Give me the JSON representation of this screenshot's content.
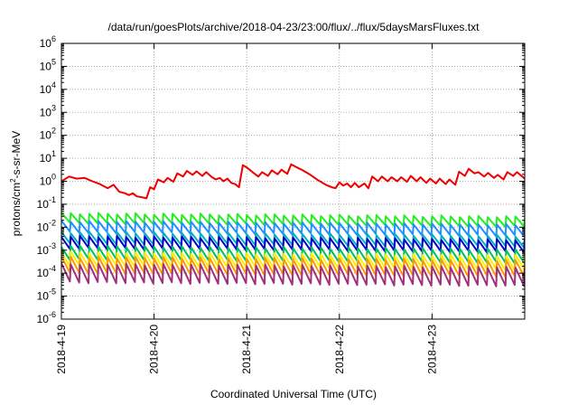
{
  "chart_data": {
    "type": "line",
    "title": "/data/run/goesPlots/archive/2018-04-23/23:00/flux/../flux/5daysMarsFluxes.txt",
    "xlabel": "Coordinated Universal Time (UTC)",
    "ylabel": "protons/cm²-s-sr-MeV",
    "y_scale": "log",
    "ylim": [
      1e-06,
      1000000.0
    ],
    "y_ticks": [
      {
        "value": 1e-06,
        "base": "10",
        "exp": "-6"
      },
      {
        "value": 1e-05,
        "base": "10",
        "exp": "-5"
      },
      {
        "value": 0.0001,
        "base": "10",
        "exp": "-4"
      },
      {
        "value": 0.001,
        "base": "10",
        "exp": "-3"
      },
      {
        "value": 0.01,
        "base": "10",
        "exp": "-2"
      },
      {
        "value": 0.1,
        "base": "10",
        "exp": "-1"
      },
      {
        "value": 1,
        "base": "10",
        "exp": "0"
      },
      {
        "value": 10,
        "base": "10",
        "exp": "1"
      },
      {
        "value": 100,
        "base": "10",
        "exp": "2"
      },
      {
        "value": 1000.0,
        "base": "10",
        "exp": "3"
      },
      {
        "value": 10000.0,
        "base": "10",
        "exp": "4"
      },
      {
        "value": 100000.0,
        "base": "10",
        "exp": "5"
      },
      {
        "value": 1000000.0,
        "base": "10",
        "exp": "6"
      }
    ],
    "xlim": [
      "2018-04-19",
      "2018-04-24"
    ],
    "x_ticks": [
      "2018-4-19",
      "2018-4-20",
      "2018-4-21",
      "2018-4-22",
      "2018-4-23"
    ],
    "grid": true,
    "legend": "none",
    "series": [
      {
        "color": "#ee0000",
        "points": [
          [
            "2018-04-19 00:00",
            1.0
          ],
          [
            "2018-04-19 02:00",
            1.6
          ],
          [
            "2018-04-19 04:00",
            1.3
          ],
          [
            "2018-04-19 06:00",
            1.4
          ],
          [
            "2018-04-19 08:00",
            1.0
          ],
          [
            "2018-04-19 10:00",
            0.75
          ],
          [
            "2018-04-19 12:00",
            0.5
          ],
          [
            "2018-04-19 13:30",
            0.7
          ],
          [
            "2018-04-19 15:00",
            0.35
          ],
          [
            "2018-04-19 16:30",
            0.3
          ],
          [
            "2018-04-19 17:30",
            0.25
          ],
          [
            "2018-04-19 18:30",
            0.3
          ],
          [
            "2018-04-19 19:30",
            0.22
          ],
          [
            "2018-04-19 21:00",
            0.2
          ],
          [
            "2018-04-19 22:00",
            0.18
          ],
          [
            "2018-04-19 23:00",
            0.55
          ],
          [
            "2018-04-20 00:00",
            0.45
          ],
          [
            "2018-04-20 01:00",
            1.2
          ],
          [
            "2018-04-20 02:30",
            0.9
          ],
          [
            "2018-04-20 03:30",
            1.4
          ],
          [
            "2018-04-20 05:00",
            0.95
          ],
          [
            "2018-04-20 06:00",
            2.2
          ],
          [
            "2018-04-20 07:30",
            1.6
          ],
          [
            "2018-04-20 08:30",
            2.8
          ],
          [
            "2018-04-20 10:00",
            1.9
          ],
          [
            "2018-04-20 11:00",
            2.7
          ],
          [
            "2018-04-20 12:30",
            1.7
          ],
          [
            "2018-04-20 13:30",
            2.5
          ],
          [
            "2018-04-20 15:00",
            1.5
          ],
          [
            "2018-04-20 16:00",
            1.2
          ],
          [
            "2018-04-20 17:00",
            1.4
          ],
          [
            "2018-04-20 18:00",
            1.0
          ],
          [
            "2018-04-20 19:00",
            1.3
          ],
          [
            "2018-04-20 20:00",
            0.85
          ],
          [
            "2018-04-20 21:00",
            0.75
          ],
          [
            "2018-04-20 22:00",
            0.55
          ],
          [
            "2018-04-20 23:00",
            5.0
          ],
          [
            "2018-04-21 00:00",
            4.0
          ],
          [
            "2018-04-21 01:30",
            2.5
          ],
          [
            "2018-04-21 03:00",
            1.6
          ],
          [
            "2018-04-21 04:00",
            2.5
          ],
          [
            "2018-04-21 05:30",
            1.7
          ],
          [
            "2018-04-21 06:30",
            3.0
          ],
          [
            "2018-04-21 08:00",
            2.0
          ],
          [
            "2018-04-21 09:00",
            3.2
          ],
          [
            "2018-04-21 10:30",
            2.1
          ],
          [
            "2018-04-21 11:30",
            5.5
          ],
          [
            "2018-04-21 13:00",
            4.0
          ],
          [
            "2018-04-21 14:30",
            3.0
          ],
          [
            "2018-04-21 16:30",
            1.9
          ],
          [
            "2018-04-21 18:30",
            1.1
          ],
          [
            "2018-04-21 20:30",
            0.7
          ],
          [
            "2018-04-21 22:00",
            0.55
          ],
          [
            "2018-04-21 23:00",
            0.5
          ],
          [
            "2018-04-22 00:00",
            0.9
          ],
          [
            "2018-04-22 01:00",
            0.65
          ],
          [
            "2018-04-22 02:00",
            0.8
          ],
          [
            "2018-04-22 03:00",
            0.55
          ],
          [
            "2018-04-22 04:00",
            0.85
          ],
          [
            "2018-04-22 05:00",
            0.55
          ],
          [
            "2018-04-22 06:30",
            0.8
          ],
          [
            "2018-04-22 07:30",
            0.5
          ],
          [
            "2018-04-22 08:30",
            1.6
          ],
          [
            "2018-04-22 10:00",
            1.0
          ],
          [
            "2018-04-22 11:00",
            1.6
          ],
          [
            "2018-04-22 12:30",
            1.0
          ],
          [
            "2018-04-22 13:30",
            1.5
          ],
          [
            "2018-04-22 15:00",
            1.0
          ],
          [
            "2018-04-22 16:00",
            1.5
          ],
          [
            "2018-04-22 17:30",
            0.95
          ],
          [
            "2018-04-22 18:30",
            1.7
          ],
          [
            "2018-04-22 20:00",
            1.0
          ],
          [
            "2018-04-22 21:00",
            1.5
          ],
          [
            "2018-04-22 22:30",
            0.85
          ],
          [
            "2018-04-22 23:30",
            1.3
          ],
          [
            "2018-04-23 01:00",
            0.8
          ],
          [
            "2018-04-23 02:00",
            1.3
          ],
          [
            "2018-04-23 03:30",
            0.75
          ],
          [
            "2018-04-23 04:30",
            1.2
          ],
          [
            "2018-04-23 06:00",
            0.7
          ],
          [
            "2018-04-23 07:00",
            2.6
          ],
          [
            "2018-04-23 08:30",
            1.7
          ],
          [
            "2018-04-23 09:30",
            3.5
          ],
          [
            "2018-04-23 11:00",
            2.2
          ],
          [
            "2018-04-23 12:00",
            2.5
          ],
          [
            "2018-04-23 13:30",
            1.6
          ],
          [
            "2018-04-23 14:30",
            2.3
          ],
          [
            "2018-04-23 16:00",
            1.4
          ],
          [
            "2018-04-23 17:00",
            1.9
          ],
          [
            "2018-04-23 18:30",
            1.2
          ],
          [
            "2018-04-23 19:30",
            2.5
          ],
          [
            "2018-04-23 21:00",
            1.7
          ],
          [
            "2018-04-23 22:00",
            2.5
          ],
          [
            "2018-04-23 23:00",
            1.8
          ],
          [
            "2018-04-24 00:00",
            1.3
          ]
        ]
      },
      {
        "color": "#22ee22",
        "sawtooth": {
          "high": 0.04,
          "low": 0.015,
          "drift": -0.3,
          "period_hours": 2.4
        }
      },
      {
        "color": "#1e90ff",
        "sawtooth": {
          "high": 0.018,
          "low": 0.006,
          "drift": -0.3,
          "period_hours": 2.4
        }
      },
      {
        "color": "#00b0c0",
        "sawtooth": {
          "high": 0.006,
          "low": 0.002,
          "drift": -0.3,
          "period_hours": 2.4
        }
      },
      {
        "color": "#0000cc",
        "sawtooth": {
          "high": 0.004,
          "low": 0.0012,
          "drift": -0.3,
          "period_hours": 2.4
        }
      },
      {
        "color": "#00c060",
        "sawtooth": {
          "high": 0.0015,
          "low": 0.0004,
          "drift": -0.3,
          "period_hours": 2.4
        }
      },
      {
        "color": "#ffee00",
        "sawtooth": {
          "high": 0.0008,
          "low": 0.0002,
          "drift": -0.3,
          "period_hours": 2.4
        }
      },
      {
        "color": "#ff9900",
        "sawtooth": {
          "high": 0.0005,
          "low": 0.0001,
          "drift": -0.3,
          "period_hours": 2.4
        }
      },
      {
        "color": "#a0307a",
        "sawtooth": {
          "high": 0.00025,
          "low": 4e-05,
          "drift": -0.3,
          "period_hours": 2.4
        }
      }
    ]
  }
}
